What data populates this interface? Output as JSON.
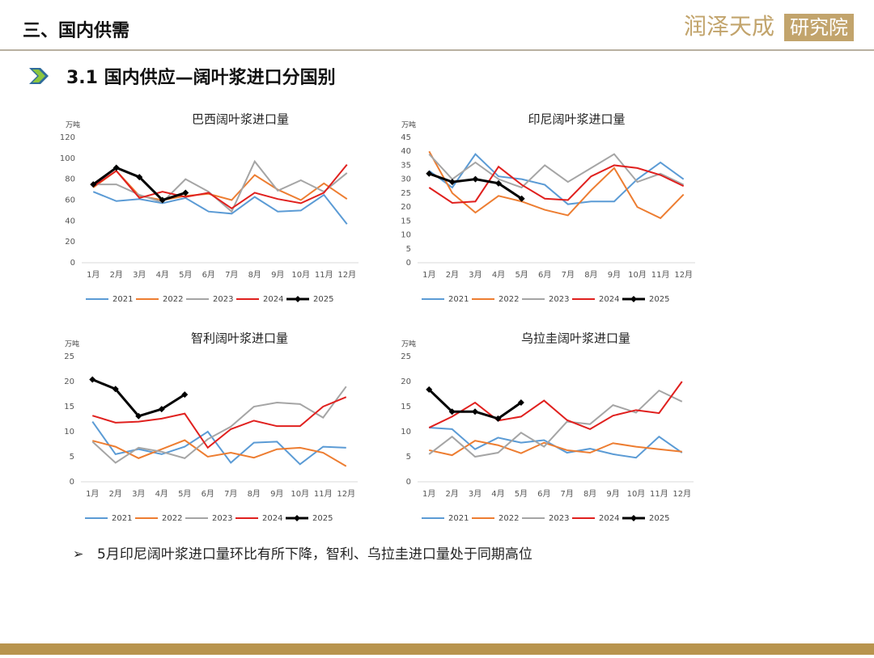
{
  "header": {
    "title": "三、国内供需",
    "logo_main": "润泽天成",
    "logo_box": "研究院",
    "section": "3.1  国内供应—阔叶浆进口分国别"
  },
  "note": "5月印尼阔叶浆进口量环比有所下降，智利、乌拉圭进口量处于同期高位",
  "chart_data": [
    {
      "type": "line",
      "title": "巴西阔叶浆进口量",
      "y_label": "万吨",
      "categories": [
        "1月",
        "2月",
        "3月",
        "4月",
        "5月",
        "6月",
        "7月",
        "8月",
        "9月",
        "10月",
        "11月",
        "12月"
      ],
      "ylim": [
        0,
        120
      ],
      "yticks": [
        0,
        20,
        40,
        60,
        80,
        100,
        120
      ],
      "legend": "bottom",
      "series": [
        {
          "name": "2021",
          "color": "#5b9bd5",
          "values": [
            68,
            59,
            61,
            57,
            62,
            49,
            47,
            63,
            49,
            50,
            65,
            37
          ]
        },
        {
          "name": "2022",
          "color": "#ed7d31",
          "values": [
            72,
            88,
            64,
            60,
            64,
            66,
            60,
            84,
            70,
            60,
            76,
            61
          ]
        },
        {
          "name": "2023",
          "color": "#a5a5a5",
          "values": [
            75,
            75,
            65,
            58,
            80,
            68,
            49,
            97,
            69,
            79,
            68,
            86
          ]
        },
        {
          "name": "2024",
          "color": "#e0201e",
          "values": [
            73,
            88,
            62,
            68,
            63,
            67,
            52,
            67,
            61,
            57,
            67,
            94
          ]
        },
        {
          "name": "2025",
          "color": "#000000",
          "marker": "diamond",
          "values": [
            75,
            91,
            82,
            60,
            67,
            null,
            null,
            null,
            null,
            null,
            null,
            null
          ]
        }
      ]
    },
    {
      "type": "line",
      "title": "印尼阔叶浆进口量",
      "y_label": "万吨",
      "categories": [
        "1月",
        "2月",
        "3月",
        "4月",
        "5月",
        "6月",
        "7月",
        "8月",
        "9月",
        "10月",
        "11月",
        "12月"
      ],
      "ylim": [
        0,
        45
      ],
      "yticks": [
        0,
        5,
        10,
        15,
        20,
        25,
        30,
        35,
        40,
        45
      ],
      "legend": "bottom",
      "series": [
        {
          "name": "2021",
          "color": "#5b9bd5",
          "values": [
            33,
            27,
            39,
            31,
            30,
            28,
            21,
            22,
            22,
            30,
            36,
            30
          ]
        },
        {
          "name": "2022",
          "color": "#ed7d31",
          "values": [
            40,
            25,
            18,
            24,
            22,
            19,
            17,
            26,
            34,
            20,
            16,
            24.5
          ]
        },
        {
          "name": "2023",
          "color": "#a5a5a5",
          "values": [
            39,
            30,
            36,
            30,
            27,
            35,
            29,
            34,
            39,
            29,
            32,
            28
          ]
        },
        {
          "name": "2024",
          "color": "#e0201e",
          "values": [
            27,
            21.5,
            22,
            34.5,
            28,
            23,
            22.5,
            31,
            35,
            34,
            31.5,
            27.5
          ]
        },
        {
          "name": "2025",
          "color": "#000000",
          "marker": "diamond",
          "values": [
            32,
            29,
            30,
            28.5,
            23,
            null,
            null,
            null,
            null,
            null,
            null,
            null
          ]
        }
      ]
    },
    {
      "type": "line",
      "title": "智利阔叶浆进口量",
      "y_label": "万吨",
      "categories": [
        "1月",
        "2月",
        "3月",
        "4月",
        "5月",
        "6月",
        "7月",
        "8月",
        "9月",
        "10月",
        "11月",
        "12月"
      ],
      "ylim": [
        0,
        25
      ],
      "yticks": [
        0,
        5,
        10,
        15,
        20,
        25
      ],
      "legend": "bottom",
      "series": [
        {
          "name": "2021",
          "color": "#5b9bd5",
          "values": [
            12,
            5.5,
            6.5,
            5.5,
            7,
            10,
            3.8,
            7.8,
            8,
            3.5,
            7,
            6.8
          ]
        },
        {
          "name": "2022",
          "color": "#ed7d31",
          "values": [
            8.2,
            7,
            4.7,
            6.5,
            8.3,
            5,
            5.8,
            4.8,
            6.5,
            6.8,
            5.8,
            3.1
          ]
        },
        {
          "name": "2023",
          "color": "#a5a5a5",
          "values": [
            8,
            3.8,
            6.8,
            6,
            4.7,
            8.5,
            11,
            15,
            15.8,
            15.5,
            12.8,
            19
          ]
        },
        {
          "name": "2024",
          "color": "#e0201e",
          "values": [
            13.2,
            11.8,
            12,
            12.6,
            13.6,
            6.8,
            10.5,
            12.2,
            11.1,
            11.1,
            15,
            16.9
          ]
        },
        {
          "name": "2025",
          "color": "#000000",
          "marker": "diamond",
          "values": [
            20.4,
            18.5,
            13.1,
            14.5,
            17.4,
            null,
            null,
            null,
            null,
            null,
            null,
            null
          ]
        }
      ]
    },
    {
      "type": "line",
      "title": "乌拉圭阔叶浆进口量",
      "y_label": "万吨",
      "categories": [
        "1月",
        "2月",
        "3月",
        "4月",
        "5月",
        "6月",
        "7月",
        "8月",
        "9月",
        "10月",
        "11月",
        "12月"
      ],
      "ylim": [
        0,
        25
      ],
      "yticks": [
        0,
        5,
        10,
        15,
        20,
        25
      ],
      "legend": "bottom",
      "series": [
        {
          "name": "2021",
          "color": "#5b9bd5",
          "values": [
            10.8,
            10.5,
            6.5,
            8.8,
            7.8,
            8.3,
            5.8,
            6.6,
            5.5,
            4.8,
            9,
            5.8
          ]
        },
        {
          "name": "2022",
          "color": "#ed7d31",
          "values": [
            6.3,
            5.3,
            8.2,
            7.3,
            5.7,
            7.8,
            6.3,
            5.8,
            7.7,
            7,
            6.5,
            6
          ]
        },
        {
          "name": "2023",
          "color": "#a5a5a5",
          "values": [
            5.5,
            9,
            5,
            5.8,
            9.8,
            7,
            12,
            11.5,
            15.3,
            13.8,
            18.2,
            16
          ]
        },
        {
          "name": "2024",
          "color": "#e0201e",
          "values": [
            10.8,
            13,
            15.8,
            12.2,
            13,
            16.2,
            12.3,
            10.5,
            13.2,
            14.3,
            13.7,
            20
          ]
        },
        {
          "name": "2025",
          "color": "#000000",
          "marker": "diamond",
          "values": [
            18.4,
            14,
            14,
            12.6,
            15.8,
            null,
            null,
            null,
            null,
            null,
            null,
            null
          ]
        }
      ]
    }
  ]
}
